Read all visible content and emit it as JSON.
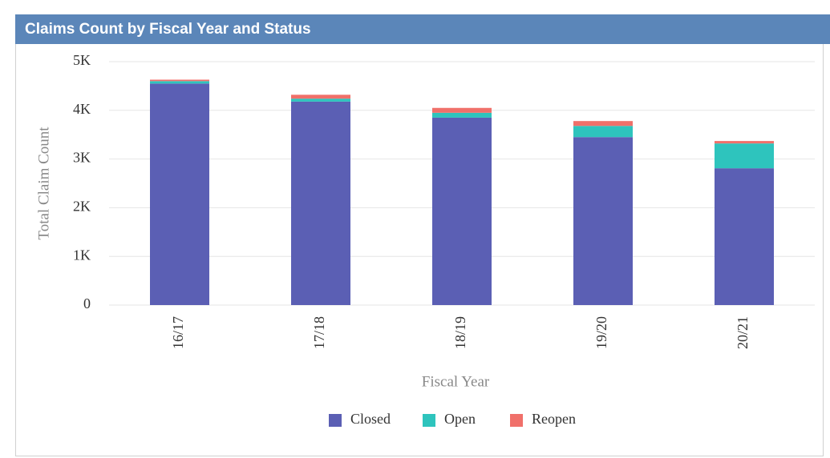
{
  "chart_data": {
    "type": "stacked_bar",
    "title": "Claims Count by Fiscal Year and Status",
    "x_label": "Fiscal Year",
    "y_label": "Total Claim Count",
    "categories": [
      "16/17",
      "17/18",
      "18/19",
      "19/20",
      "20/21"
    ],
    "series": [
      {
        "name": "Closed",
        "color": "#5b5fb4",
        "values": [
          4550,
          4180,
          3850,
          3450,
          2810
        ]
      },
      {
        "name": "Open",
        "color": "#2ec4bd",
        "values": [
          50,
          60,
          100,
          230,
          510
        ]
      },
      {
        "name": "Reopen",
        "color": "#f0706a",
        "values": [
          30,
          80,
          100,
          100,
          50
        ]
      }
    ],
    "ylim": [
      0,
      5000
    ],
    "yticks": [
      0,
      {
        "value": 1000,
        "label": "1K"
      },
      {
        "value": 2000,
        "label": "2K"
      },
      {
        "value": 3000,
        "label": "3K"
      },
      {
        "value": 4000,
        "label": "4K"
      },
      {
        "value": 5000,
        "label": "5K"
      }
    ],
    "grid": true,
    "legend": "bottom"
  }
}
